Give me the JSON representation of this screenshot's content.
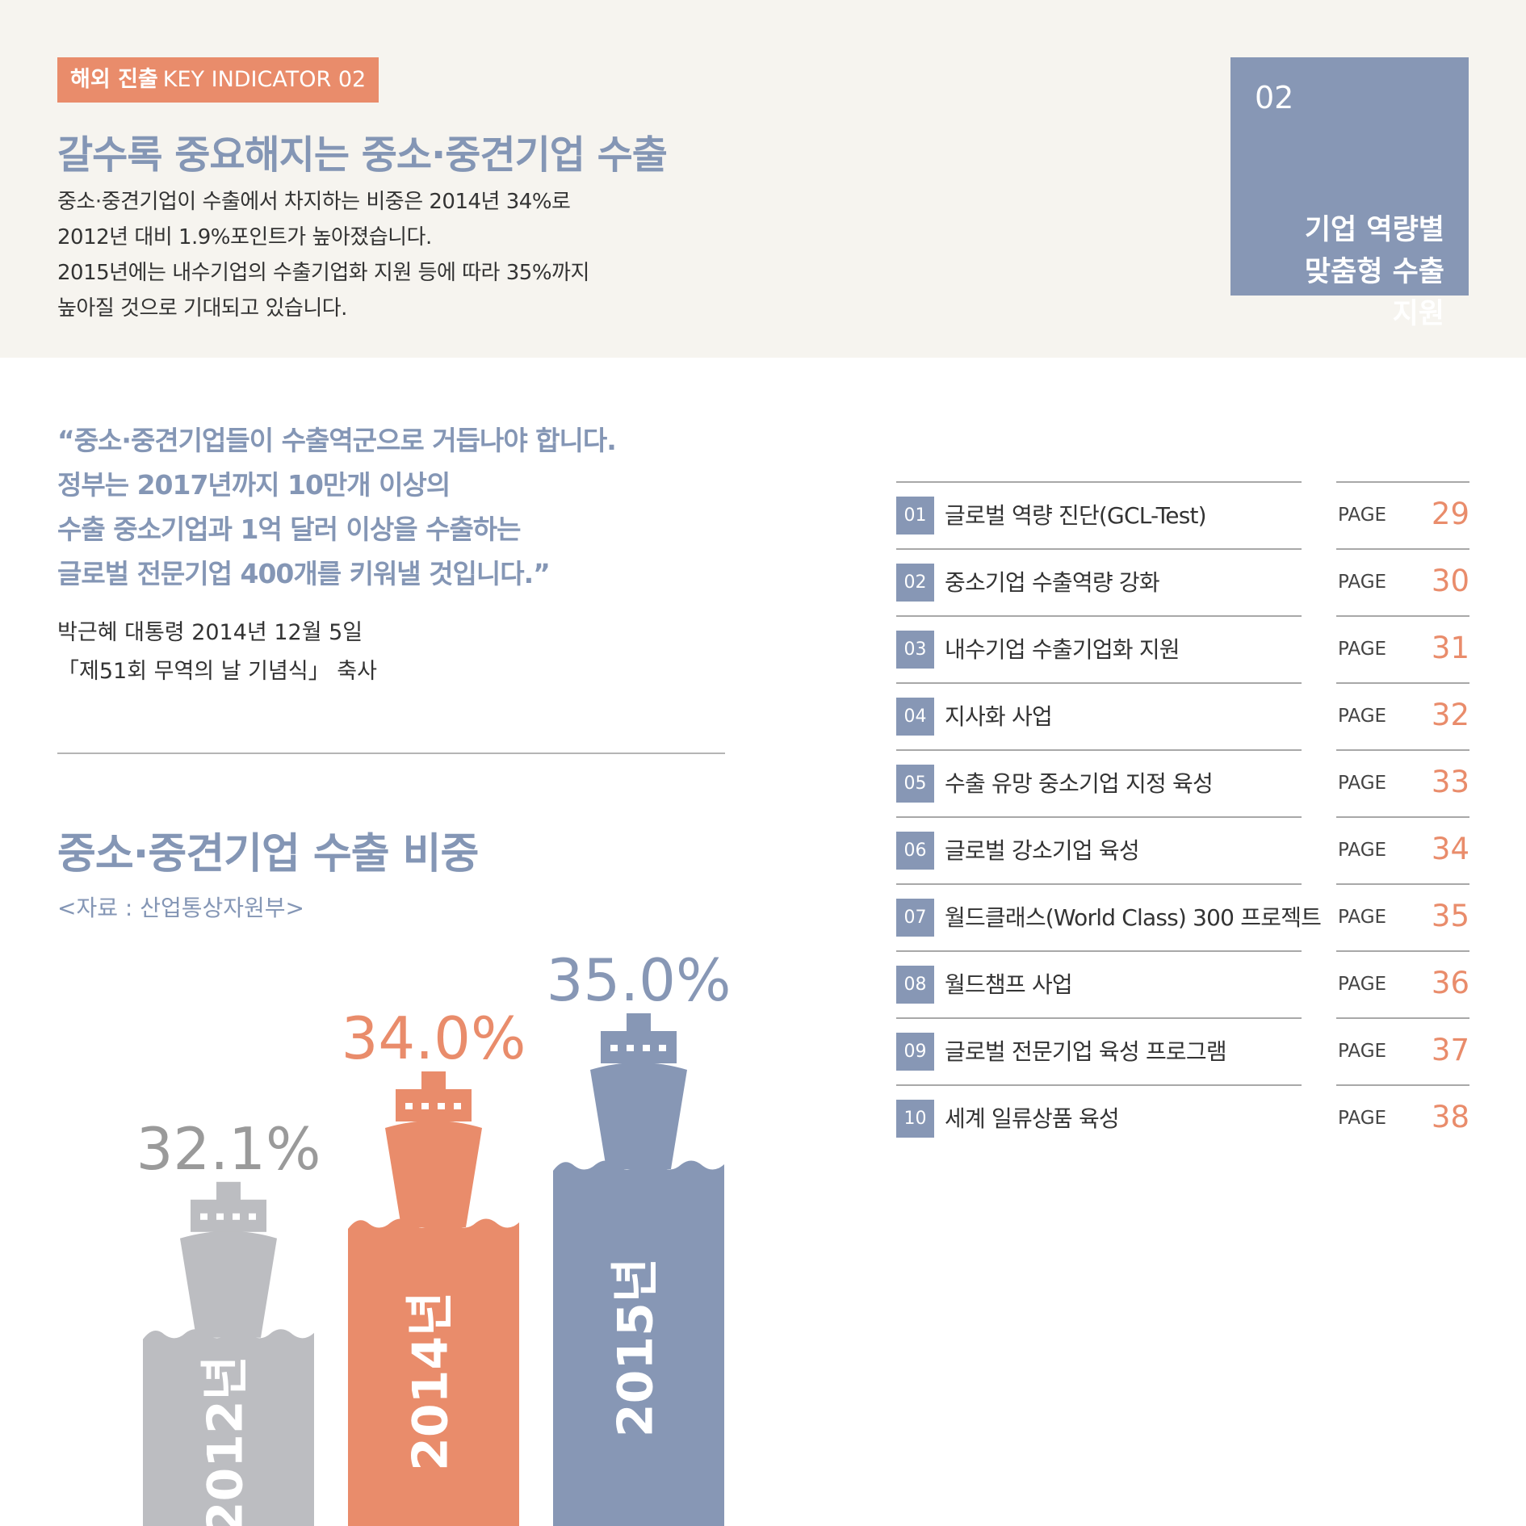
{
  "header": {
    "kicker_bold": "해외 진출",
    "kicker_rest": "KEY INDICATOR 02",
    "headline": "갈수록 중요해지는 중소·중견기업 수출",
    "intro": [
      "중소·중견기업이 수출에서 차지하는 비중은 2014년 34%로",
      "2012년 대비 1.9%포인트가 높아졌습니다.",
      "2015년에는 내수기업의 수출기업화 지원 등에 따라 35%까지",
      "높아질 것으로 기대되고 있습니다."
    ]
  },
  "section": {
    "number": "02",
    "title_lines": [
      "기업 역량별",
      "맞춤형 수출",
      "지원"
    ]
  },
  "quote": {
    "lines": [
      "“중소·중견기업들이 수출역군으로 거듭나야 합니다.",
      "정부는 2017년까지 10만개 이상의",
      "수출 중소기업과 1억 달러 이상을 수출하는",
      "글로벌 전문기업 400개를 키워낼 것입니다.”"
    ],
    "speaker_lines": [
      "박근혜 대통령 2014년 12월 5일",
      "「제51회 무역의 날 기념식」 축사"
    ]
  },
  "chart_data": {
    "type": "bar",
    "title": "중소·중견기업 수출 비중",
    "source": "<자료 : 산업통상자원부>",
    "categories": [
      "2012년",
      "2014년",
      "2015년"
    ],
    "values": [
      32.1,
      34.0,
      35.0
    ],
    "value_labels": [
      "32.1%",
      "34.0%",
      "35.0%"
    ],
    "colors": [
      "#bcbdc1",
      "#e98c6b",
      "#8797b5"
    ],
    "label_colors": [
      "#9a9a9a",
      "#e98c6b",
      "#8797b5"
    ]
  },
  "toc": {
    "page_word": "PAGE",
    "items": [
      {
        "num": "01",
        "label": "글로벌 역량 진단(GCL-Test)",
        "page": "29"
      },
      {
        "num": "02",
        "label": "중소기업 수출역량 강화",
        "page": "30"
      },
      {
        "num": "03",
        "label": "내수기업 수출기업화 지원",
        "page": "31"
      },
      {
        "num": "04",
        "label": "지사화 사업",
        "page": "32"
      },
      {
        "num": "05",
        "label": "수출 유망 중소기업 지정 육성",
        "page": "33"
      },
      {
        "num": "06",
        "label": "글로벌 강소기업 육성",
        "page": "34"
      },
      {
        "num": "07",
        "label": "월드클래스(World Class) 300 프로젝트",
        "page": "35"
      },
      {
        "num": "08",
        "label": "월드챔프 사업",
        "page": "36"
      },
      {
        "num": "09",
        "label": "글로벌 전문기업 육성 프로그램",
        "page": "37"
      },
      {
        "num": "10",
        "label": "세계 일류상품 육성",
        "page": "38"
      }
    ]
  }
}
